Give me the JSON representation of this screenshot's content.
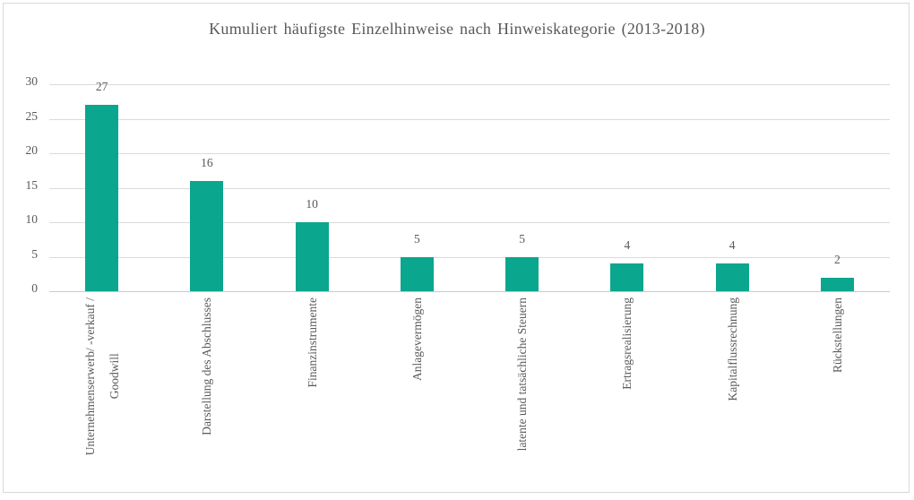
{
  "chart_data": {
    "type": "bar",
    "title": "Kumuliert häufigste Einzelhinweise nach Hinweiskategorie (2013-2018)",
    "categories": [
      "Unternehmenserwerb/ -verkauf /\nGoodwill",
      "Darstellung des Abschlusses",
      "Finanzinstrumente",
      "Anlagevermögen",
      "latente und tatsächliche Steuern",
      "Ertragsrealisierung",
      "Kapitalflussrechnung",
      "Rückstellungen"
    ],
    "values": [
      27,
      16,
      10,
      5,
      5,
      4,
      4,
      2
    ],
    "xlabel": "",
    "ylabel": "",
    "ylim": [
      0,
      30
    ],
    "yticks": [
      0,
      5,
      10,
      15,
      20,
      25,
      30
    ],
    "grid": true,
    "legend": false,
    "bar_color": "#0ba68e",
    "gridline_color": "#dbdbdb",
    "axis_line_color": "#c9c9c9",
    "text_color": "#595959"
  }
}
